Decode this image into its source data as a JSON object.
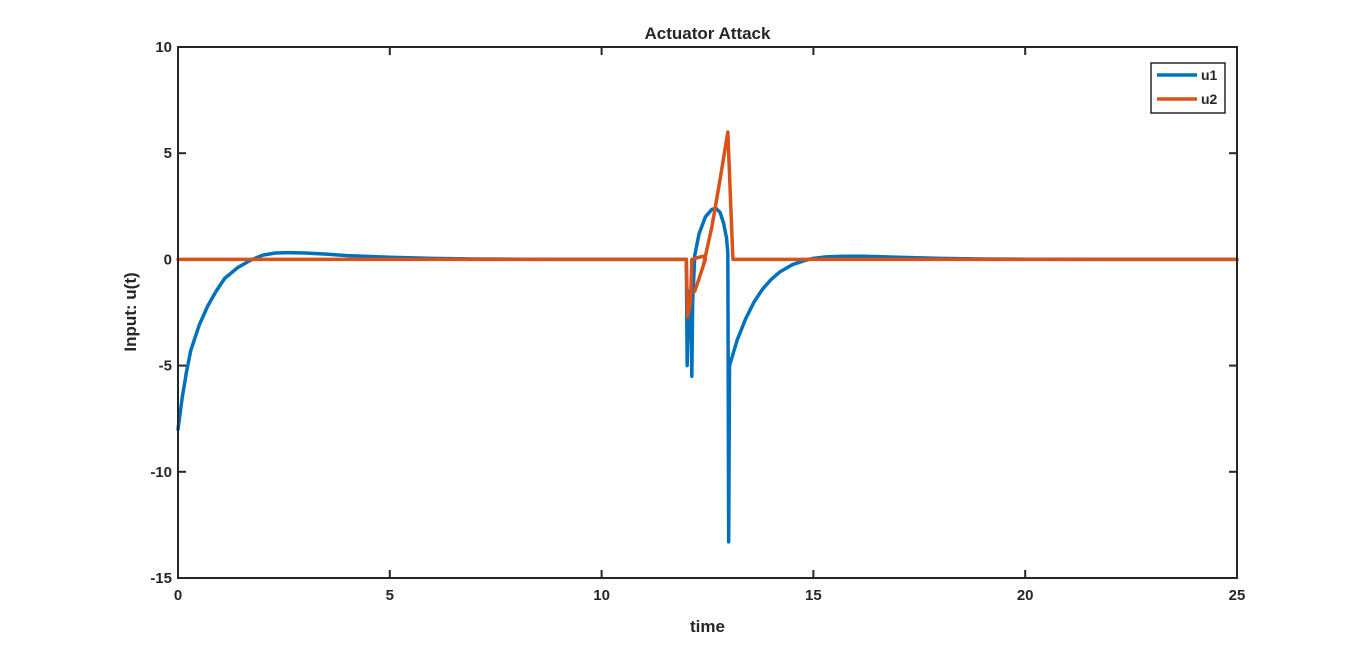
{
  "chart_data": {
    "type": "line",
    "title": "Actuator Attack",
    "xlabel": "time",
    "ylabel": "Input: u(t)",
    "xlim": [
      0,
      25
    ],
    "ylim": [
      -15,
      10
    ],
    "xticks": [
      0,
      5,
      10,
      15,
      20,
      25
    ],
    "yticks": [
      -15,
      -10,
      -5,
      0,
      5,
      10
    ],
    "grid": false,
    "legend_position": "top-right",
    "series": [
      {
        "name": "u1",
        "color": "#0072BD",
        "points": [
          [
            0,
            -8.0
          ],
          [
            0.1,
            -6.5
          ],
          [
            0.2,
            -5.3
          ],
          [
            0.3,
            -4.3
          ],
          [
            0.5,
            -3.1
          ],
          [
            0.7,
            -2.2
          ],
          [
            0.9,
            -1.5
          ],
          [
            1.1,
            -0.9
          ],
          [
            1.4,
            -0.4
          ],
          [
            1.7,
            -0.05
          ],
          [
            2.0,
            0.2
          ],
          [
            2.3,
            0.3
          ],
          [
            2.6,
            0.32
          ],
          [
            3.0,
            0.3
          ],
          [
            3.5,
            0.25
          ],
          [
            4.0,
            0.18
          ],
          [
            5.0,
            0.1
          ],
          [
            6.0,
            0.05
          ],
          [
            7.0,
            0.02
          ],
          [
            8.0,
            0.01
          ],
          [
            9.0,
            0.0
          ],
          [
            10.0,
            0.0
          ],
          [
            11.0,
            0.0
          ],
          [
            11.9,
            0.0
          ],
          [
            12.0,
            0.0
          ],
          [
            12.02,
            -5.0
          ],
          [
            12.05,
            -2.0
          ],
          [
            12.08,
            -1.5
          ],
          [
            12.1,
            -2.5
          ],
          [
            12.12,
            -4.0
          ],
          [
            12.13,
            -5.5
          ],
          [
            12.15,
            -2.0
          ],
          [
            12.2,
            0.2
          ],
          [
            12.3,
            1.2
          ],
          [
            12.45,
            2.0
          ],
          [
            12.6,
            2.35
          ],
          [
            12.7,
            2.4
          ],
          [
            12.8,
            2.2
          ],
          [
            12.88,
            1.7
          ],
          [
            12.95,
            1.0
          ],
          [
            12.98,
            0.3
          ],
          [
            13.0,
            -13.3
          ],
          [
            13.02,
            -5.0
          ],
          [
            13.2,
            -3.8
          ],
          [
            13.4,
            -2.8
          ],
          [
            13.6,
            -2.0
          ],
          [
            13.8,
            -1.4
          ],
          [
            14.0,
            -0.95
          ],
          [
            14.2,
            -0.6
          ],
          [
            14.5,
            -0.25
          ],
          [
            14.8,
            -0.05
          ],
          [
            15.0,
            0.05
          ],
          [
            15.3,
            0.12
          ],
          [
            15.7,
            0.15
          ],
          [
            16.2,
            0.15
          ],
          [
            17.0,
            0.1
          ],
          [
            18.0,
            0.05
          ],
          [
            19.0,
            0.02
          ],
          [
            20.0,
            0.01
          ],
          [
            22.0,
            0.0
          ],
          [
            25.0,
            0.0
          ]
        ]
      },
      {
        "name": "u2",
        "color": "#D95319",
        "points": [
          [
            0,
            0.0
          ],
          [
            12.0,
            0.0
          ],
          [
            12.03,
            -2.7
          ],
          [
            12.1,
            -2.0
          ],
          [
            12.13,
            0.0
          ],
          [
            12.3,
            0.1
          ],
          [
            12.4,
            0.15
          ],
          [
            12.45,
            0.0
          ],
          [
            12.2,
            -1.5
          ],
          [
            12.4,
            -0.3
          ],
          [
            12.6,
            1.5
          ],
          [
            12.8,
            3.8
          ],
          [
            12.98,
            6.0
          ],
          [
            13.1,
            0.0
          ],
          [
            25.0,
            0.0
          ]
        ]
      }
    ]
  }
}
